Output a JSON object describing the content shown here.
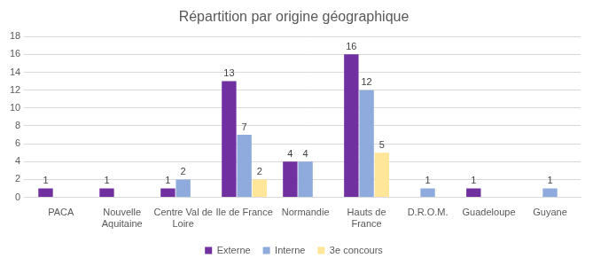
{
  "chart_data": {
    "type": "bar",
    "title": "Répartition par origine géographique",
    "categories": [
      "PACA",
      "Nouvelle Aquitaine",
      "Centre Val de Loire",
      "Ile de France",
      "Normandie",
      "Hauts de France",
      "D.R.O.M.",
      "Guadeloupe",
      "Guyane"
    ],
    "series": [
      {
        "name": "Externe",
        "color": "#7030a0",
        "values": [
          1,
          1,
          1,
          13,
          4,
          16,
          null,
          1,
          null
        ]
      },
      {
        "name": "Interne",
        "color": "#8faadc",
        "values": [
          null,
          null,
          2,
          7,
          4,
          12,
          1,
          null,
          1
        ]
      },
      {
        "name": "3e concours",
        "color": "#ffe699",
        "values": [
          null,
          null,
          null,
          2,
          null,
          5,
          null,
          null,
          null
        ]
      }
    ],
    "ylim": [
      0,
      18
    ],
    "yticks": [
      0,
      2,
      4,
      6,
      8,
      10,
      12,
      14,
      16,
      18
    ],
    "grid": true,
    "legend": "bottom",
    "data_labels": true
  }
}
